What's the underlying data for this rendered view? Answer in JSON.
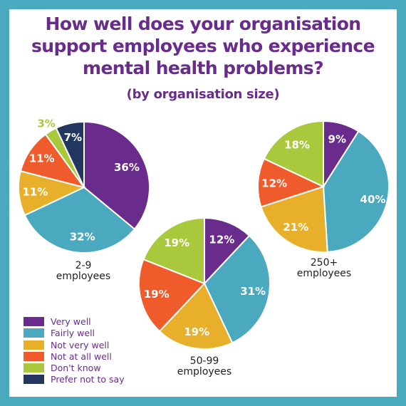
{
  "title_lines": [
    "How well does your organisation",
    "support employees who experience",
    "mental health problems?"
  ],
  "subtitle": "(by organisation size)",
  "colors": {
    "frame": "#4aa8bf",
    "title": "#6a2c8c",
    "Very well": "#6a2c8c",
    "Fairly well": "#4aa8bf",
    "Not very well": "#e8b02a",
    "Not at all well": "#ef5b2b",
    "Don't know": "#a9c83c",
    "Prefer not to say": "#223660"
  },
  "legend": [
    "Very well",
    "Fairly well",
    "Not very well",
    "Not at all well",
    "Don't know",
    "Prefer not to say"
  ],
  "chart_data": [
    {
      "type": "pie",
      "title": "2-9 employees",
      "categories": [
        "Very well",
        "Fairly well",
        "Not very well",
        "Not at all well",
        "Don't know",
        "Prefer not to say"
      ],
      "values": [
        36,
        32,
        11,
        11,
        3,
        7
      ],
      "labels": [
        "36%",
        "32%",
        "11%",
        "11%",
        "3%",
        "7%"
      ]
    },
    {
      "type": "pie",
      "title": "50-99 employees",
      "categories": [
        "Very well",
        "Fairly well",
        "Not very well",
        "Not at all well",
        "Don't know"
      ],
      "values": [
        12,
        31,
        19,
        19,
        19
      ],
      "labels": [
        "12%",
        "31%",
        "19%",
        "19%",
        "19%"
      ]
    },
    {
      "type": "pie",
      "title": "250+ employees",
      "categories": [
        "Very well",
        "Fairly well",
        "Not very well",
        "Not at all well",
        "Don't know"
      ],
      "values": [
        9,
        40,
        21,
        12,
        18
      ],
      "labels": [
        "9%",
        "40%",
        "21%",
        "12%",
        "18%"
      ]
    }
  ],
  "group_labels": [
    [
      "2-9",
      "employees"
    ],
    [
      "50-99",
      "employees"
    ],
    [
      "250+",
      "employees"
    ]
  ]
}
